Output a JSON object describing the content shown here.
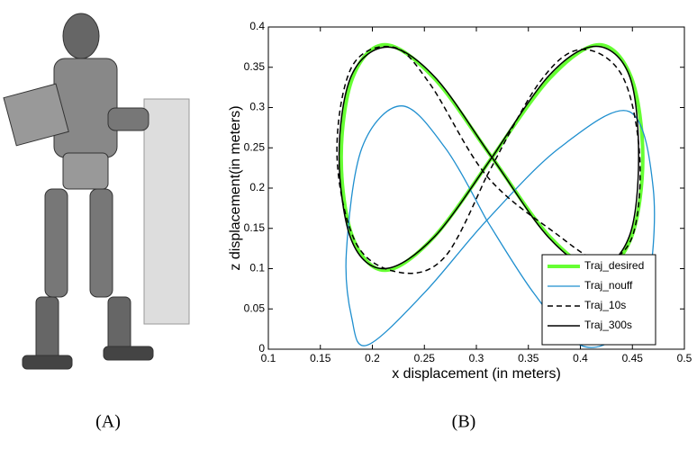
{
  "chart_data": {
    "type": "line",
    "xlabel": "x displacement (in meters)",
    "ylabel": "z displacement(in meters)",
    "xlim": [
      0.1,
      0.5
    ],
    "xticks": [
      0.1,
      0.15,
      0.2,
      0.25,
      0.3,
      0.35,
      0.4,
      0.45,
      0.5
    ],
    "ylim": [
      0,
      0.4
    ],
    "yticks": [
      0,
      0.05,
      0.1,
      0.15,
      0.2,
      0.25,
      0.3,
      0.35,
      0.4
    ],
    "legend": "lower right",
    "series": [
      {
        "name": "Traj_desired",
        "color": "#66ff33",
        "linestyle": "solid",
        "linewidth": 4,
        "x": [
          0.315,
          0.371,
          0.418,
          0.449,
          0.46,
          0.449,
          0.418,
          0.371,
          0.315,
          0.259,
          0.212,
          0.181,
          0.17,
          0.181,
          0.212,
          0.259,
          0.315
        ],
        "values": [
          0.238,
          0.337,
          0.378,
          0.337,
          0.238,
          0.139,
          0.098,
          0.139,
          0.238,
          0.337,
          0.378,
          0.337,
          0.238,
          0.139,
          0.098,
          0.139,
          0.238
        ]
      },
      {
        "name": "Traj_nouff",
        "color": "#1f8fcf",
        "linestyle": "solid",
        "linewidth": 1.3,
        "x": [
          0.31,
          0.27,
          0.228,
          0.19,
          0.175,
          0.18,
          0.195,
          0.25,
          0.31,
          0.38,
          0.447,
          0.47,
          0.465,
          0.44,
          0.4,
          0.355,
          0.31
        ],
        "values": [
          0.16,
          0.25,
          0.302,
          0.25,
          0.12,
          0.04,
          0.005,
          0.07,
          0.16,
          0.25,
          0.295,
          0.2,
          0.08,
          0.02,
          0.005,
          0.07,
          0.16
        ]
      },
      {
        "name": "Traj_10s",
        "color": "#000000",
        "linestyle": "dashed",
        "linewidth": 1.5,
        "x": [
          0.31,
          0.36,
          0.4,
          0.44,
          0.457,
          0.45,
          0.42,
          0.375,
          0.31,
          0.255,
          0.22,
          0.18,
          0.166,
          0.185,
          0.228,
          0.27,
          0.31
        ],
        "values": [
          0.215,
          0.33,
          0.372,
          0.34,
          0.24,
          0.14,
          0.11,
          0.145,
          0.215,
          0.33,
          0.375,
          0.35,
          0.24,
          0.13,
          0.095,
          0.115,
          0.215
        ]
      },
      {
        "name": "Traj_300s",
        "color": "#000000",
        "linestyle": "solid",
        "linewidth": 1.5,
        "x": [
          0.315,
          0.37,
          0.415,
          0.447,
          0.456,
          0.447,
          0.415,
          0.37,
          0.315,
          0.26,
          0.215,
          0.18,
          0.168,
          0.18,
          0.212,
          0.26,
          0.315
        ],
        "values": [
          0.238,
          0.34,
          0.376,
          0.34,
          0.24,
          0.14,
          0.1,
          0.138,
          0.238,
          0.338,
          0.375,
          0.34,
          0.24,
          0.135,
          0.1,
          0.14,
          0.238
        ]
      }
    ]
  },
  "captions": [
    "(A)",
    "(B)"
  ]
}
